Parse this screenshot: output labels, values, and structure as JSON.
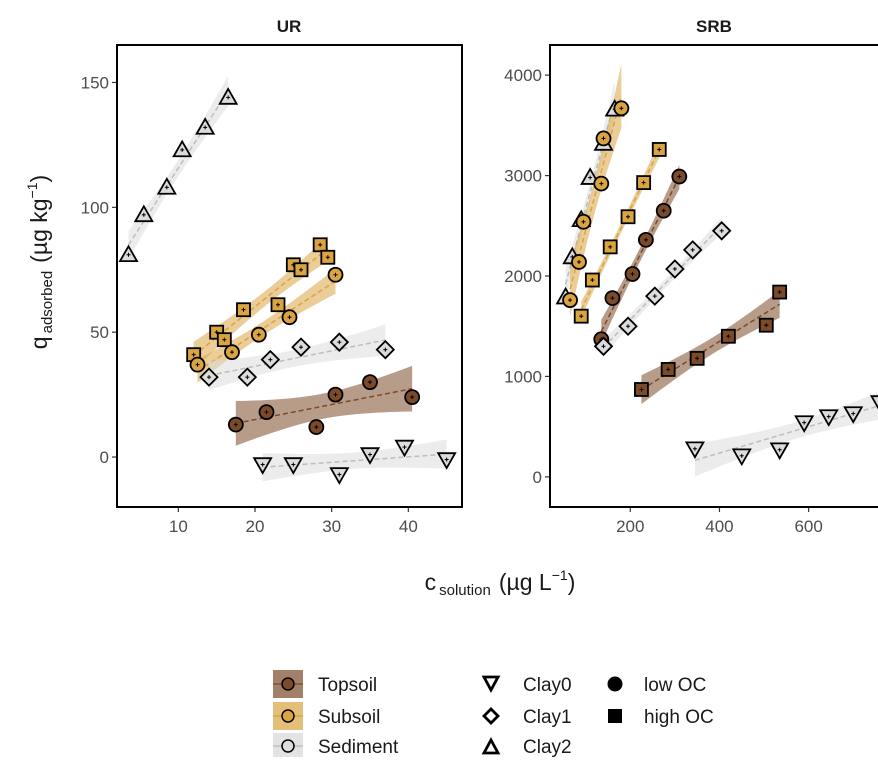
{
  "colors": {
    "topsoil": "#7B4A2A",
    "subsoil": "#D9A441",
    "sediment": "#DCDCDC",
    "outline": "#000000"
  },
  "axis_titles": {
    "y_main": "q",
    "y_sub": "adsorbed",
    "y_units_prefix": "(µg kg",
    "y_units_exp": "−1",
    "y_units_suffix": ")",
    "x_main": "c",
    "x_sub": "solution",
    "x_units_prefix": "(µg L",
    "x_units_exp": "−1",
    "x_units_suffix": ")"
  },
  "legend": {
    "material": [
      {
        "label": "Topsoil",
        "key": "topsoil"
      },
      {
        "label": "Subsoil",
        "key": "subsoil"
      },
      {
        "label": "Sediment",
        "key": "sediment"
      }
    ],
    "clay": [
      {
        "label": "Clay0",
        "shape": "tri-down"
      },
      {
        "label": "Clay1",
        "shape": "diamond"
      },
      {
        "label": "Clay2",
        "shape": "tri-up"
      }
    ],
    "oc": [
      {
        "label": "low OC",
        "shape": "circle"
      },
      {
        "label": "high OC",
        "shape": "square"
      }
    ]
  },
  "chart_data": [
    {
      "type": "scatter",
      "title": "UR",
      "xlim": [
        2,
        47
      ],
      "ylim": [
        -20,
        165
      ],
      "xticks": [
        10,
        20,
        30,
        40
      ],
      "yticks": [
        0,
        50,
        100,
        150
      ],
      "series": [
        {
          "material": "sediment",
          "shape": "tri-up",
          "x": [
            3.5,
            5.5,
            8.5,
            10.5,
            13.5,
            16.5
          ],
          "y": [
            81,
            97,
            108,
            123,
            132,
            144
          ]
        },
        {
          "material": "topsoil",
          "shape": "circle",
          "x": [
            17.5,
            21.5,
            28,
            30.5,
            35,
            40.5
          ],
          "y": [
            13,
            18,
            12,
            25,
            30,
            24
          ]
        },
        {
          "material": "subsoil",
          "shape": "square",
          "x": [
            12,
            15,
            16,
            18.5,
            23,
            25,
            26,
            28.5,
            29.5
          ],
          "y": [
            41,
            50,
            47,
            59,
            61,
            77,
            75,
            85,
            80
          ]
        },
        {
          "material": "subsoil",
          "shape": "circle",
          "x": [
            12.5,
            17,
            20.5,
            24.5,
            30.5
          ],
          "y": [
            37,
            42,
            49,
            56,
            73
          ]
        },
        {
          "material": "sediment",
          "shape": "diamond",
          "x": [
            14,
            19,
            22,
            26,
            31,
            37
          ],
          "y": [
            32,
            32,
            39,
            44,
            46,
            43
          ]
        },
        {
          "material": "sediment",
          "shape": "tri-down",
          "x": [
            21,
            25,
            31,
            35,
            39.5,
            45
          ],
          "y": [
            -3,
            -3,
            -7,
            1,
            4,
            -1
          ]
        }
      ]
    },
    {
      "type": "scatter",
      "title": "SRB",
      "xlim": [
        20,
        760
      ],
      "ylim": [
        -300,
        4300
      ],
      "xticks": [
        200,
        400,
        600
      ],
      "yticks": [
        0,
        1000,
        2000,
        3000,
        4000
      ],
      "series": [
        {
          "material": "sediment",
          "shape": "tri-up",
          "x": [
            55,
            70,
            90,
            110,
            140,
            165
          ],
          "y": [
            1790,
            2190,
            2560,
            2980,
            3320,
            3660
          ]
        },
        {
          "material": "subsoil",
          "shape": "circle",
          "x": [
            65,
            85,
            95,
            135,
            140,
            180
          ],
          "y": [
            1760,
            2140,
            2540,
            2920,
            3370,
            3670
          ]
        },
        {
          "material": "subsoil",
          "shape": "square",
          "x": [
            90,
            115,
            155,
            195,
            230,
            265
          ],
          "y": [
            1600,
            1960,
            2290,
            2590,
            2930,
            3260
          ]
        },
        {
          "material": "topsoil",
          "shape": "circle",
          "x": [
            135,
            160,
            205,
            235,
            275,
            310
          ],
          "y": [
            1370,
            1780,
            2020,
            2360,
            2650,
            2990
          ]
        },
        {
          "material": "sediment",
          "shape": "diamond",
          "x": [
            140,
            195,
            255,
            300,
            340,
            405
          ],
          "y": [
            1300,
            1500,
            1800,
            2070,
            2260,
            2450
          ]
        },
        {
          "material": "topsoil",
          "shape": "square",
          "x": [
            225,
            285,
            350,
            420,
            505,
            535
          ],
          "y": [
            870,
            1070,
            1180,
            1400,
            1510,
            1840
          ]
        },
        {
          "material": "sediment",
          "shape": "tri-down",
          "x": [
            345,
            450,
            535,
            590,
            645,
            700,
            760
          ],
          "y": [
            280,
            210,
            270,
            540,
            600,
            630,
            740
          ]
        }
      ]
    }
  ]
}
